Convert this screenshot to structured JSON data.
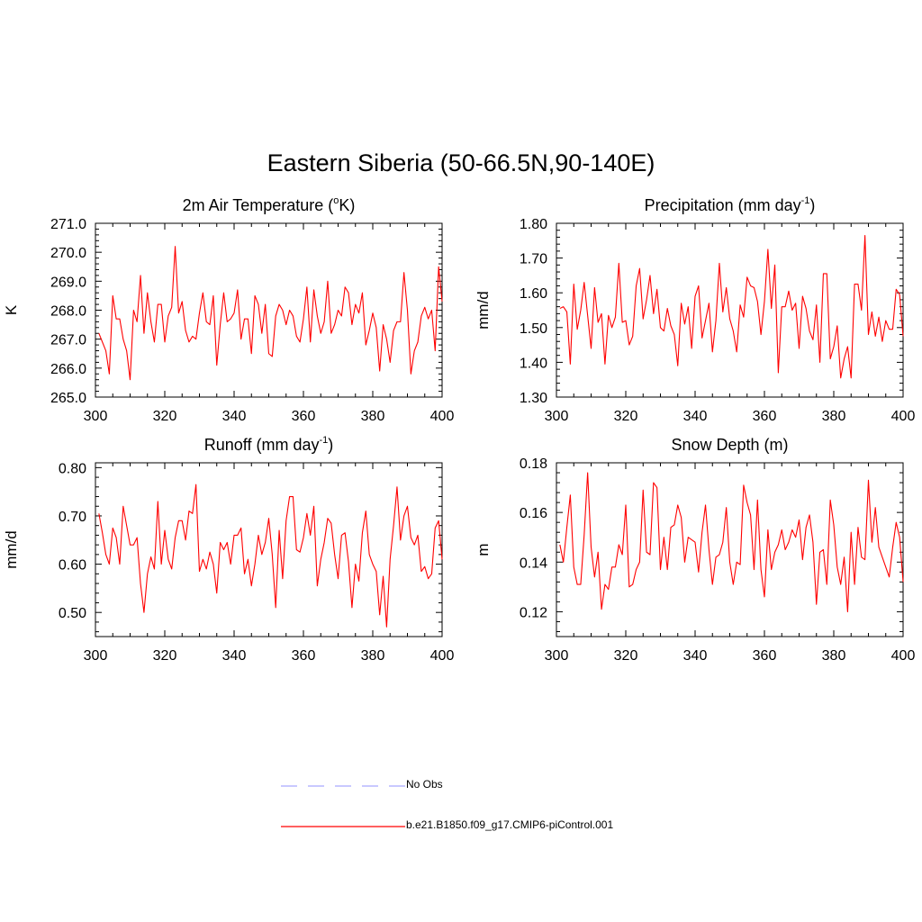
{
  "title": "Eastern Siberia (50-66.5N,90-140E)",
  "legend": [
    {
      "label": "No Obs",
      "color": "#a9a9ff",
      "style": "dashed"
    },
    {
      "label": "b.e21.B1850.f09_g17.CMIP6-piControl.001",
      "color": "#ff0000",
      "style": "solid"
    }
  ],
  "chart_data": [
    {
      "type": "line",
      "title": "2m Air Temperature",
      "title_sup": "o",
      "title_sup_before": "2m Air Temperature (",
      "title_sup_after": "K)",
      "ylabel": "K",
      "xlim": [
        300,
        400
      ],
      "ylim": [
        265.0,
        271.0
      ],
      "xticks": [
        "300",
        "320",
        "340",
        "360",
        "380",
        "400"
      ],
      "yticks": [
        "265.0",
        "266.0",
        "267.0",
        "268.0",
        "269.0",
        "270.0",
        "271.0"
      ],
      "series": [
        {
          "name": "b.e21.B1850.f09_g17.CMIP6-piControl.001",
          "color": "#ff0000",
          "x_start": 301,
          "values": [
            267.2,
            266.9,
            266.6,
            265.8,
            268.5,
            267.7,
            267.7,
            267.0,
            266.6,
            265.6,
            268.0,
            267.6,
            269.2,
            267.2,
            268.6,
            267.6,
            266.9,
            268.2,
            268.2,
            266.9,
            267.8,
            268.1,
            270.2,
            267.9,
            268.3,
            267.3,
            266.9,
            267.1,
            267.0,
            267.9,
            268.6,
            267.6,
            267.5,
            268.5,
            266.1,
            267.5,
            268.6,
            267.6,
            267.7,
            267.9,
            268.7,
            267.0,
            267.7,
            267.7,
            266.5,
            268.5,
            268.2,
            267.2,
            268.2,
            266.5,
            266.4,
            267.8,
            268.2,
            268.0,
            267.5,
            268.0,
            267.8,
            267.1,
            266.9,
            267.7,
            268.8,
            266.9,
            268.7,
            267.8,
            267.2,
            267.6,
            269.0,
            267.2,
            267.5,
            268.0,
            267.8,
            268.8,
            268.6,
            267.5,
            268.2,
            267.9,
            268.6,
            266.8,
            267.3,
            267.9,
            267.4,
            265.9,
            267.5,
            267.0,
            266.2,
            267.3,
            267.6,
            267.6,
            269.3,
            268.0,
            265.8,
            266.6,
            266.9,
            267.8,
            268.1,
            267.7,
            268.0,
            266.6,
            269.5,
            268.3
          ]
        }
      ]
    },
    {
      "type": "line",
      "title": "Precipitation",
      "title_sup": "-1",
      "title_sup_before": "Precipitation (mm day",
      "title_sup_after": ")",
      "ylabel": "mm/d",
      "xlim": [
        300,
        400
      ],
      "ylim": [
        1.3,
        1.8
      ],
      "xticks": [
        "300",
        "320",
        "340",
        "360",
        "380",
        "400"
      ],
      "yticks": [
        "1.30",
        "1.40",
        "1.50",
        "1.60",
        "1.70",
        "1.80"
      ],
      "series": [
        {
          "name": "b.e21.B1850.f09_g17.CMIP6-piControl.001",
          "color": "#ff0000",
          "x_start": 301,
          "values": [
            1.555,
            1.56,
            1.545,
            1.395,
            1.625,
            1.495,
            1.55,
            1.63,
            1.535,
            1.44,
            1.615,
            1.515,
            1.54,
            1.395,
            1.535,
            1.5,
            1.53,
            1.685,
            1.515,
            1.52,
            1.45,
            1.475,
            1.62,
            1.67,
            1.525,
            1.58,
            1.65,
            1.54,
            1.61,
            1.5,
            1.49,
            1.555,
            1.505,
            1.48,
            1.39,
            1.57,
            1.51,
            1.56,
            1.44,
            1.59,
            1.62,
            1.47,
            1.52,
            1.57,
            1.43,
            1.52,
            1.685,
            1.545,
            1.615,
            1.525,
            1.49,
            1.43,
            1.565,
            1.53,
            1.645,
            1.62,
            1.615,
            1.575,
            1.48,
            1.575,
            1.725,
            1.555,
            1.68,
            1.37,
            1.56,
            1.56,
            1.605,
            1.55,
            1.57,
            1.44,
            1.59,
            1.555,
            1.49,
            1.465,
            1.565,
            1.4,
            1.655,
            1.655,
            1.41,
            1.445,
            1.505,
            1.355,
            1.41,
            1.445,
            1.355,
            1.625,
            1.625,
            1.55,
            1.765,
            1.48,
            1.545,
            1.475,
            1.53,
            1.46,
            1.52,
            1.495,
            1.495,
            1.61,
            1.595,
            1.475
          ]
        }
      ]
    },
    {
      "type": "line",
      "title": "Runoff",
      "title_sup": "-1",
      "title_sup_before": "Runoff (mm day",
      "title_sup_after": ")",
      "ylabel": "mm/d",
      "xlim": [
        300,
        400
      ],
      "ylim": [
        0.45,
        0.81
      ],
      "xticks": [
        "300",
        "320",
        "340",
        "360",
        "380",
        "400"
      ],
      "yticks": [
        "0.50",
        "0.60",
        "0.70",
        "0.80"
      ],
      "series": [
        {
          "name": "b.e21.B1850.f09_g17.CMIP6-piControl.001",
          "color": "#ff0000",
          "x_start": 301,
          "values": [
            0.705,
            0.665,
            0.62,
            0.6,
            0.675,
            0.655,
            0.6,
            0.72,
            0.68,
            0.64,
            0.64,
            0.655,
            0.56,
            0.5,
            0.58,
            0.615,
            0.59,
            0.73,
            0.6,
            0.67,
            0.61,
            0.59,
            0.655,
            0.69,
            0.69,
            0.65,
            0.71,
            0.705,
            0.765,
            0.585,
            0.61,
            0.59,
            0.625,
            0.6,
            0.54,
            0.645,
            0.63,
            0.645,
            0.6,
            0.66,
            0.66,
            0.675,
            0.58,
            0.61,
            0.555,
            0.6,
            0.66,
            0.62,
            0.645,
            0.695,
            0.62,
            0.51,
            0.67,
            0.57,
            0.69,
            0.74,
            0.74,
            0.63,
            0.625,
            0.655,
            0.705,
            0.66,
            0.72,
            0.555,
            0.61,
            0.645,
            0.695,
            0.685,
            0.62,
            0.57,
            0.66,
            0.665,
            0.605,
            0.51,
            0.6,
            0.565,
            0.665,
            0.71,
            0.62,
            0.6,
            0.585,
            0.495,
            0.575,
            0.47,
            0.61,
            0.68,
            0.76,
            0.65,
            0.7,
            0.72,
            0.655,
            0.64,
            0.66,
            0.585,
            0.595,
            0.57,
            0.58,
            0.675,
            0.69,
            0.61
          ]
        }
      ]
    },
    {
      "type": "line",
      "title": "Snow Depth (m)",
      "ylabel": "m",
      "xlim": [
        300,
        400
      ],
      "ylim": [
        0.11,
        0.18
      ],
      "xticks": [
        "300",
        "320",
        "340",
        "360",
        "380",
        "400"
      ],
      "yticks": [
        "0.12",
        "0.14",
        "0.16",
        "0.18"
      ],
      "series": [
        {
          "name": "b.e21.B1850.f09_g17.CMIP6-piControl.001",
          "color": "#ff0000",
          "x_start": 301,
          "values": [
            0.147,
            0.14,
            0.154,
            0.167,
            0.138,
            0.131,
            0.131,
            0.151,
            0.176,
            0.146,
            0.134,
            0.144,
            0.121,
            0.131,
            0.129,
            0.138,
            0.138,
            0.147,
            0.143,
            0.163,
            0.13,
            0.131,
            0.137,
            0.14,
            0.169,
            0.144,
            0.143,
            0.172,
            0.17,
            0.137,
            0.15,
            0.137,
            0.154,
            0.155,
            0.163,
            0.158,
            0.14,
            0.15,
            0.149,
            0.148,
            0.136,
            0.152,
            0.163,
            0.145,
            0.131,
            0.142,
            0.143,
            0.148,
            0.162,
            0.14,
            0.131,
            0.14,
            0.139,
            0.171,
            0.164,
            0.159,
            0.137,
            0.165,
            0.137,
            0.126,
            0.153,
            0.137,
            0.144,
            0.147,
            0.153,
            0.145,
            0.148,
            0.153,
            0.15,
            0.157,
            0.141,
            0.154,
            0.159,
            0.148,
            0.123,
            0.144,
            0.145,
            0.131,
            0.165,
            0.155,
            0.138,
            0.131,
            0.142,
            0.12,
            0.152,
            0.131,
            0.154,
            0.142,
            0.141,
            0.173,
            0.148,
            0.162,
            0.146,
            0.142,
            0.138,
            0.134,
            0.146,
            0.156,
            0.15,
            0.132
          ]
        }
      ]
    }
  ]
}
